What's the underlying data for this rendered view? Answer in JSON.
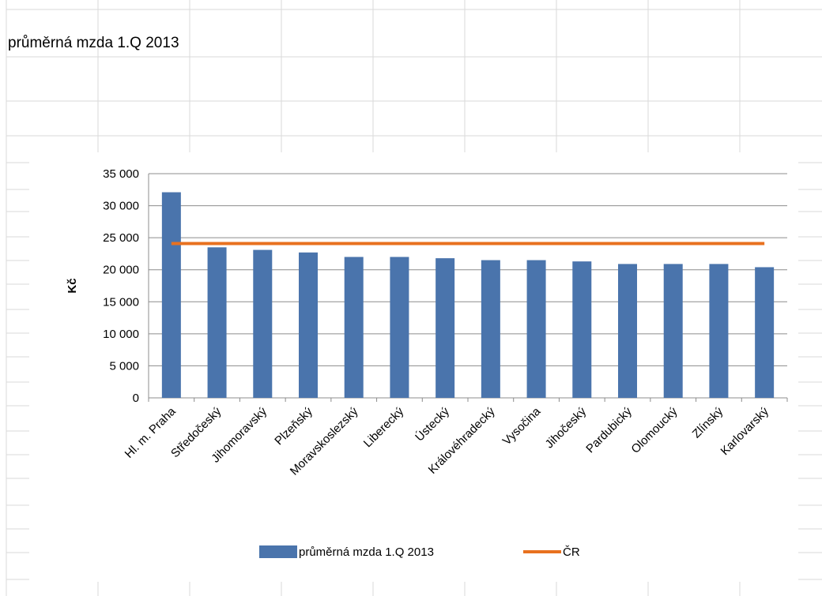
{
  "sheet": {
    "cell_title": "průměrná mzda 1.Q 2013"
  },
  "colors": {
    "bar": "#4a74ac",
    "line": "#e8711f",
    "gridline": "#8c8c8c",
    "sheet_grid": "#dadada"
  },
  "chart_data": {
    "type": "bar",
    "title": "",
    "xlabel": "",
    "ylabel": "Kč",
    "ylim": [
      0,
      35000
    ],
    "y_ticks": [
      0,
      5000,
      10000,
      15000,
      20000,
      25000,
      30000,
      35000
    ],
    "y_tick_labels": [
      "0",
      "5 000",
      "10 000",
      "15 000",
      "20 000",
      "25 000",
      "30 000",
      "35 000"
    ],
    "grid": true,
    "legend_position": "bottom",
    "categories": [
      "Hl. m. Praha",
      "Středočeský",
      "Jihomoravský",
      "Plzeňský",
      "Moravskoslezský",
      "Liberecký",
      "Ústecký",
      "Královéhradecký",
      "Vysočina",
      "Jihočeský",
      "Pardubický",
      "Olomoucký",
      "Zlínský",
      "Karlovarský"
    ],
    "series": [
      {
        "name": "průměrná mzda 1.Q 2013",
        "type": "bar",
        "values": [
          32100,
          23500,
          23100,
          22700,
          22000,
          22000,
          21800,
          21500,
          21500,
          21300,
          20900,
          20900,
          20900,
          20400
        ]
      },
      {
        "name": "ČR",
        "type": "line",
        "values": [
          24100,
          24100,
          24100,
          24100,
          24100,
          24100,
          24100,
          24100,
          24100,
          24100,
          24100,
          24100,
          24100,
          24100
        ]
      }
    ]
  }
}
